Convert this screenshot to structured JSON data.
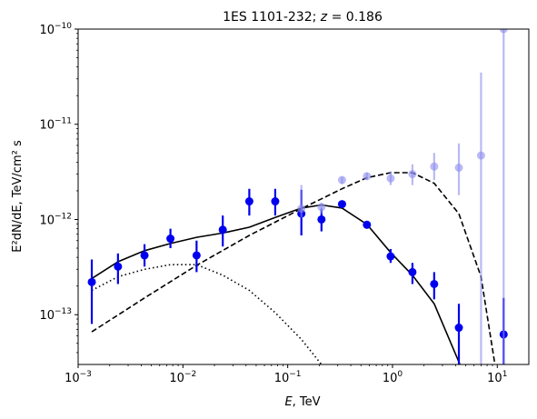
{
  "chart_data": {
    "type": "scatter",
    "title_prefix": "1ES 1101-232; ",
    "title_var": "z",
    "title_eq": " = 0.186",
    "xlabel_var": "E",
    "xlabel_rest": ", TeV",
    "ylabel": "E²dN/dE, TeV/cm² s",
    "x_scale": "log",
    "y_scale": "log",
    "xlim": [
      0.001,
      20
    ],
    "ylim": [
      3e-14,
      1e-10
    ],
    "x_ticks": [
      {
        "value": 0.001,
        "base": "10",
        "exp": "−3"
      },
      {
        "value": 0.01,
        "base": "10",
        "exp": "−2"
      },
      {
        "value": 0.1,
        "base": "10",
        "exp": "−1"
      },
      {
        "value": 1,
        "base": "10",
        "exp": "0"
      },
      {
        "value": 10,
        "base": "10",
        "exp": "1"
      }
    ],
    "y_ticks": [
      {
        "value": 1e-13,
        "base": "10",
        "exp": "−13"
      },
      {
        "value": 1e-12,
        "base": "10",
        "exp": "−12"
      },
      {
        "value": 1e-11,
        "base": "10",
        "exp": "−11"
      },
      {
        "value": 1e-10,
        "base": "10",
        "exp": "−10"
      }
    ],
    "colors": {
      "points": "#0000ee",
      "faded_points": "#8c8cee",
      "line": "#000000"
    },
    "series": [
      {
        "style": "points",
        "points": [
          {
            "x": 0.00135,
            "y": 2.2e-13,
            "ylo": 8e-14,
            "yhi": 3.8e-13
          },
          {
            "x": 0.0024,
            "y": 3.2e-13,
            "ylo": 2.1e-13,
            "yhi": 4.4e-13
          },
          {
            "x": 0.0043,
            "y": 4.2e-13,
            "ylo": 3.2e-13,
            "yhi": 5.5e-13
          },
          {
            "x": 0.0076,
            "y": 6.3e-13,
            "ylo": 5e-13,
            "yhi": 8e-13
          },
          {
            "x": 0.0135,
            "y": 4.2e-13,
            "ylo": 2.8e-13,
            "yhi": 6e-13
          },
          {
            "x": 0.024,
            "y": 7.8e-13,
            "ylo": 5.2e-13,
            "yhi": 1.1e-12
          },
          {
            "x": 0.043,
            "y": 1.55e-12,
            "ylo": 1.1e-12,
            "yhi": 2.1e-12
          },
          {
            "x": 0.076,
            "y": 1.55e-12,
            "ylo": 1.1e-12,
            "yhi": 2.1e-12
          },
          {
            "x": 0.135,
            "y": 1.15e-12,
            "ylo": 6.8e-13,
            "yhi": 2.05e-12
          },
          {
            "x": 0.21,
            "y": 1e-12,
            "ylo": 7.5e-13,
            "yhi": 1.3e-12
          },
          {
            "x": 0.33,
            "y": 1.45e-12,
            "ylo": 1.32e-12,
            "yhi": 1.58e-12
          },
          {
            "x": 0.57,
            "y": 8.8e-13,
            "ylo": 8e-13,
            "yhi": 9.6e-13
          },
          {
            "x": 0.96,
            "y": 4.1e-13,
            "ylo": 3.5e-13,
            "yhi": 4.9e-13
          },
          {
            "x": 1.55,
            "y": 2.8e-13,
            "ylo": 2.1e-13,
            "yhi": 3.5e-13
          },
          {
            "x": 2.5,
            "y": 2.1e-13,
            "ylo": 1.45e-13,
            "yhi": 2.8e-13
          },
          {
            "x": 4.3,
            "y": 7.3e-14,
            "ylo": 3e-14,
            "yhi": 1.3e-13
          },
          {
            "x": 11.5,
            "y": 6.2e-14,
            "ylo": 3e-14,
            "yhi": 1.5e-13
          }
        ]
      },
      {
        "style": "faded_points",
        "points": [
          {
            "x": 0.135,
            "y": 1.3e-12,
            "ylo": 1.05e-12,
            "yhi": 2.3e-12
          },
          {
            "x": 0.21,
            "y": 1.35e-12,
            "ylo": 1.15e-12,
            "yhi": 1.5e-12
          },
          {
            "x": 0.33,
            "y": 2.6e-12,
            "ylo": 2.35e-12,
            "yhi": 2.8e-12
          },
          {
            "x": 0.57,
            "y": 2.85e-12,
            "ylo": 2.6e-12,
            "yhi": 3.1e-12
          },
          {
            "x": 0.96,
            "y": 2.7e-12,
            "ylo": 2.3e-12,
            "yhi": 3.2e-12
          },
          {
            "x": 1.55,
            "y": 3e-12,
            "ylo": 2.3e-12,
            "yhi": 3.8e-12
          },
          {
            "x": 2.5,
            "y": 3.6e-12,
            "ylo": 2.6e-12,
            "yhi": 5e-12
          },
          {
            "x": 4.3,
            "y": 3.5e-12,
            "ylo": 1.8e-12,
            "yhi": 6.3e-12
          },
          {
            "x": 7.0,
            "y": 4.7e-12,
            "ylo": 3e-14,
            "yhi": 3.5e-11
          },
          {
            "x": 11.5,
            "y": 1e-10,
            "ylo": 3e-14,
            "yhi": 1e-10
          }
        ]
      },
      {
        "style": "solid",
        "points": [
          {
            "x": 0.00135,
            "y": 2.4e-13
          },
          {
            "x": 0.0024,
            "y": 3.6e-13
          },
          {
            "x": 0.0043,
            "y": 4.7e-13
          },
          {
            "x": 0.0076,
            "y": 5.6e-13
          },
          {
            "x": 0.0135,
            "y": 6.5e-13
          },
          {
            "x": 0.024,
            "y": 7.2e-13
          },
          {
            "x": 0.043,
            "y": 8.3e-13
          },
          {
            "x": 0.076,
            "y": 1.05e-12
          },
          {
            "x": 0.135,
            "y": 1.32e-12
          },
          {
            "x": 0.21,
            "y": 1.42e-12
          },
          {
            "x": 0.33,
            "y": 1.32e-12
          },
          {
            "x": 0.57,
            "y": 8.9e-13
          },
          {
            "x": 0.96,
            "y": 4.5e-13
          },
          {
            "x": 1.55,
            "y": 2.6e-13
          },
          {
            "x": 2.5,
            "y": 1.3e-13
          },
          {
            "x": 4.4,
            "y": 3e-14
          }
        ]
      },
      {
        "style": "dashed",
        "points": [
          {
            "x": 0.00135,
            "y": 6.6e-14
          },
          {
            "x": 0.0043,
            "y": 1.5e-13
          },
          {
            "x": 0.0135,
            "y": 3.3e-13
          },
          {
            "x": 0.043,
            "y": 6.8e-13
          },
          {
            "x": 0.135,
            "y": 1.3e-12
          },
          {
            "x": 0.33,
            "y": 2.1e-12
          },
          {
            "x": 0.57,
            "y": 2.75e-12
          },
          {
            "x": 0.96,
            "y": 3.1e-12
          },
          {
            "x": 1.55,
            "y": 3.1e-12
          },
          {
            "x": 2.5,
            "y": 2.4e-12
          },
          {
            "x": 4.3,
            "y": 1.15e-12
          },
          {
            "x": 7.0,
            "y": 2.5e-13
          },
          {
            "x": 9.5,
            "y": 3e-14
          }
        ]
      },
      {
        "style": "dotted",
        "points": [
          {
            "x": 0.00135,
            "y": 1.8e-13
          },
          {
            "x": 0.0024,
            "y": 2.5e-13
          },
          {
            "x": 0.0043,
            "y": 3e-13
          },
          {
            "x": 0.0076,
            "y": 3.35e-13
          },
          {
            "x": 0.0135,
            "y": 3.35e-13
          },
          {
            "x": 0.024,
            "y": 2.6e-13
          },
          {
            "x": 0.043,
            "y": 1.8e-13
          },
          {
            "x": 0.076,
            "y": 1.05e-13
          },
          {
            "x": 0.135,
            "y": 5.5e-14
          },
          {
            "x": 0.21,
            "y": 3e-14
          }
        ]
      }
    ]
  }
}
